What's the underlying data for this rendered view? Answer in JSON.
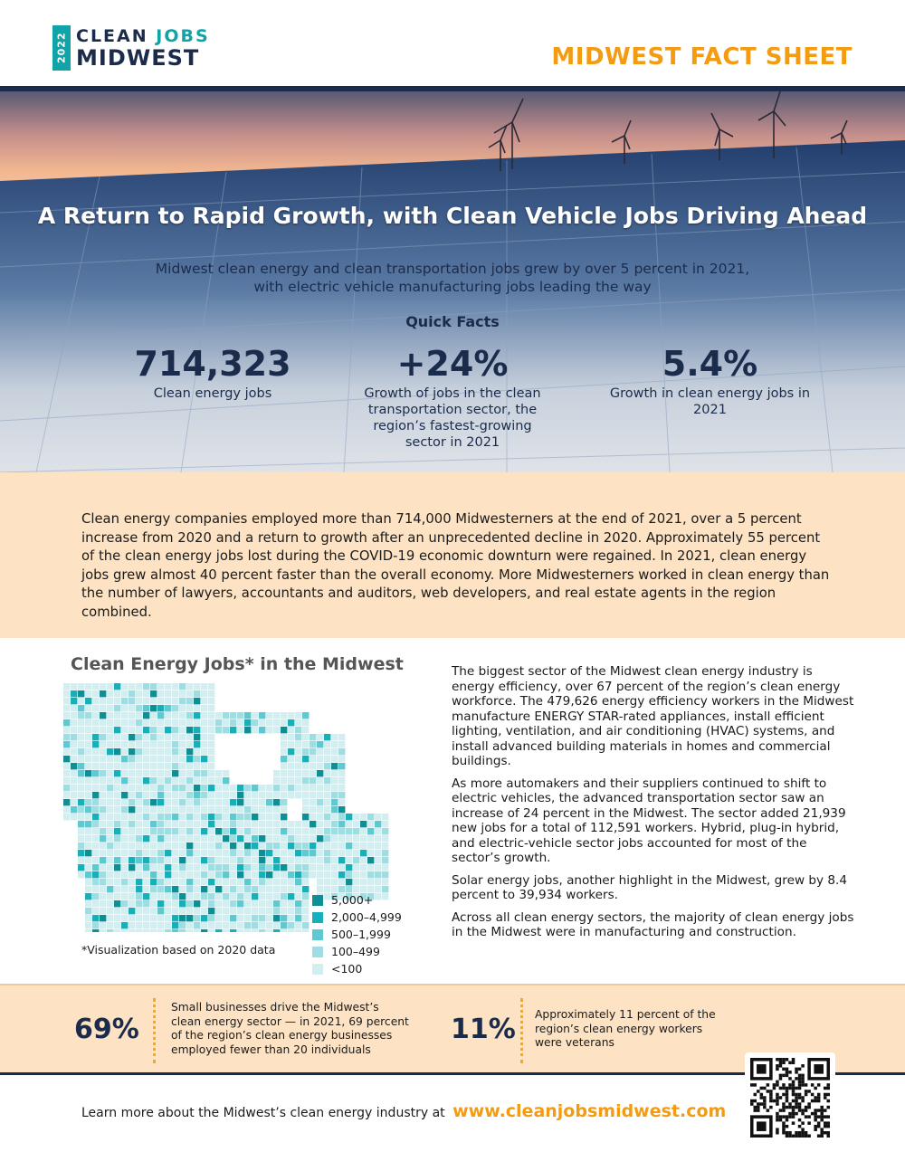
{
  "header": {
    "logo_year": "2022",
    "logo_clean": "CLEAN",
    "logo_jobs": "JOBS",
    "logo_midwest": "MIDWEST",
    "title": "MIDWEST FACT SHEET"
  },
  "hero": {
    "headline": "A Return to Rapid Growth, with Clean Vehicle Jobs Driving Ahead",
    "subtitle_line1": "Midwest clean energy and clean transportation jobs grew by over 5 percent in 2021,",
    "subtitle_line2": "with electric vehicle manufacturing jobs leading the way",
    "quick_facts_label": "Quick Facts",
    "stats": [
      {
        "value": "714,323",
        "desc": "Clean energy jobs"
      },
      {
        "value": "+24%",
        "desc": "Growth of jobs in the clean transportation sector, the region’s fastest-growing sector in 2021"
      },
      {
        "value": "5.4%",
        "desc": "Growth in clean energy jobs in 2021"
      }
    ]
  },
  "intro": {
    "text": "Clean energy companies employed more than 714,000 Midwesterners at the end of 2021, over a 5 percent increase from 2020 and a return to growth after an unprecedented decline in 2020. Approximately 55 percent of the clean energy jobs lost during the COVID-19 economic downturn were regained. In 2021, clean energy jobs grew almost 40 percent faster than the overall economy. More Midwesterners worked in clean energy than the number of lawyers, accountants and auditors, web developers, and real estate agents in the region combined."
  },
  "map": {
    "title": "Clean Energy Jobs* in the Midwest",
    "legend": [
      {
        "label": "5,000+",
        "color": "#0e8f96"
      },
      {
        "label": "2,000–4,999",
        "color": "#16b0ba"
      },
      {
        "label": "500–1,999",
        "color": "#5ec9d1"
      },
      {
        "label": "100–499",
        "color": "#9edde2"
      },
      {
        "label": "<100",
        "color": "#d3eef1"
      }
    ],
    "note": "*Visualization based on 2020 data"
  },
  "body": {
    "p1": "The biggest sector of the Midwest clean energy industry is energy efficiency, over 67 percent of the region’s clean energy workforce. The 479,626 energy efficiency workers in the Midwest manufacture ENERGY STAR-rated appliances, install efficient lighting, ventilation, and air conditioning (HVAC) systems, and install advanced building materials in homes and commercial buildings.",
    "p2": "As more automakers and their suppliers continued to shift to electric vehicles, the advanced transportation sector saw an increase of 24 percent in the Midwest. The sector added 21,939 new jobs for a total of 112,591 workers. Hybrid, plug-in hybrid, and electric-vehicle sector jobs accounted for most of the sector’s growth.",
    "p3": "Solar energy jobs, another highlight in the Midwest, grew by 8.4 percent to 39,934 workers.",
    "p4": "Across all clean energy sectors, the majority of clean energy jobs in the Midwest were in manufacturing and construction."
  },
  "band": {
    "stat1_value": "69%",
    "stat1_text": "Small businesses drive the Midwest’s clean energy sector — in 2021, 69 percent of the region’s clean energy businesses employed fewer than 20 individuals",
    "stat2_value": "11%",
    "stat2_text": "Approximately 11 percent of the region’s clean energy workers were veterans"
  },
  "footer": {
    "text": "Learn more about the Midwest’s clean energy industry at",
    "url": "www.cleanjobsmidwest.com"
  },
  "colors": {
    "navy": "#1b2b4b",
    "teal": "#10a3a8",
    "orange": "#f39c12",
    "peach": "#fde3c4"
  }
}
